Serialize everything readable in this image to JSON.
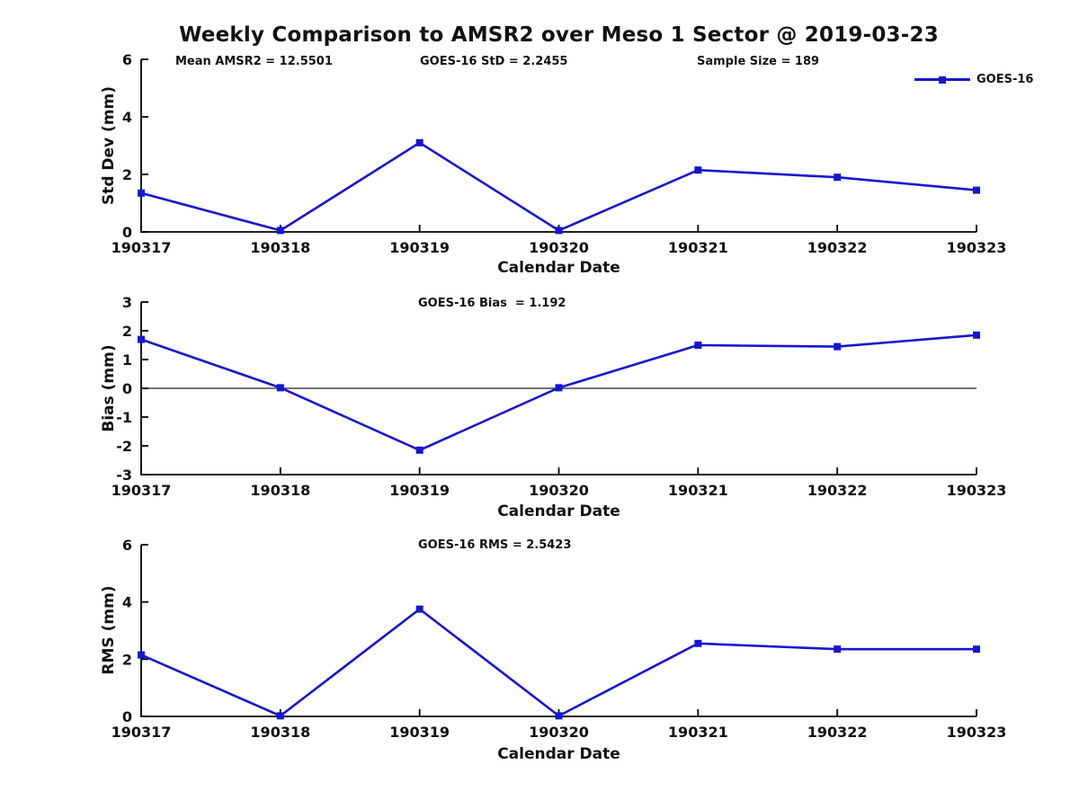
{
  "page": {
    "title": "Weekly Comparison to AMSR2 over Meso 1 Sector @ 2019-03-23"
  },
  "colors": {
    "line": "#1616d2",
    "axis": "#000000",
    "text": "#111111"
  },
  "legend": {
    "label": "GOES-16"
  },
  "stats": {
    "mean_amsr2": "Mean AMSR2 = 12.5501",
    "goes16_std": "GOES-16 StD = 2.2455",
    "sample_size": "Sample Size = 189"
  },
  "xlabel": "Calendar Date",
  "categories": [
    "190317",
    "190318",
    "190319",
    "190320",
    "190321",
    "190322",
    "190323"
  ],
  "chart_data": [
    {
      "type": "line",
      "id": "stddev",
      "ylabel": "Std Dev (mm)",
      "annotation": "",
      "ylim": [
        0,
        6
      ],
      "yticks": [
        0,
        2,
        4,
        6
      ],
      "zero_line": false,
      "legend_position": "top-right",
      "grid": false,
      "series": [
        {
          "name": "GOES-16",
          "values": [
            1.35,
            0.05,
            3.1,
            0.05,
            2.15,
            1.9,
            1.45
          ]
        }
      ]
    },
    {
      "type": "line",
      "id": "bias",
      "ylabel": "Bias (mm)",
      "annotation": "GOES-16 Bias  = 1.192",
      "ylim": [
        -3,
        3
      ],
      "yticks": [
        -3,
        -2,
        -1,
        0,
        1,
        2,
        3
      ],
      "zero_line": true,
      "grid": false,
      "series": [
        {
          "name": "GOES-16",
          "values": [
            1.7,
            0.02,
            -2.15,
            0.02,
            1.5,
            1.45,
            1.85
          ]
        }
      ]
    },
    {
      "type": "line",
      "id": "rms",
      "ylabel": "RMS (mm)",
      "annotation": "GOES-16 RMS = 2.5423",
      "ylim": [
        0,
        6
      ],
      "yticks": [
        0,
        2,
        4,
        6
      ],
      "zero_line": false,
      "grid": false,
      "series": [
        {
          "name": "GOES-16",
          "values": [
            2.15,
            0.02,
            3.75,
            0.02,
            2.55,
            2.35,
            2.35
          ]
        }
      ]
    }
  ]
}
